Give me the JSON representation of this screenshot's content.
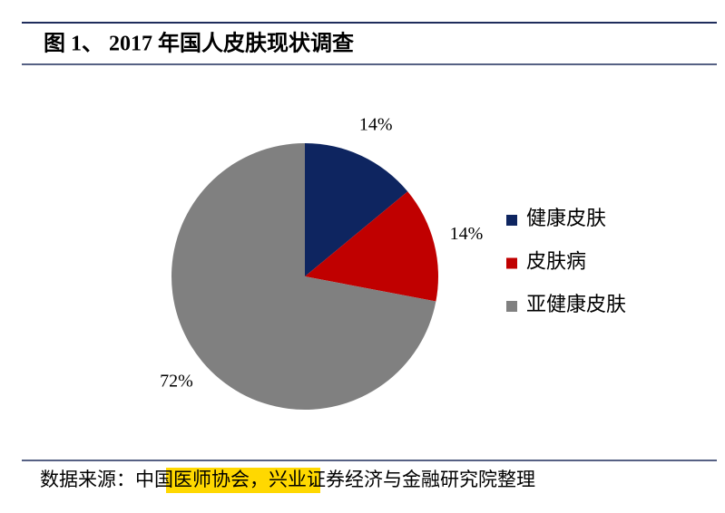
{
  "chart_data": {
    "type": "pie",
    "title": "图 1、 2017 年国人皮肤现状调查",
    "categories": [
      "健康皮肤",
      "皮肤病",
      "亚健康皮肤"
    ],
    "values": [
      14,
      14,
      72
    ],
    "value_labels": [
      "14%",
      "14%",
      "72%"
    ],
    "colors": [
      "#0e2560",
      "#c00000",
      "#808080"
    ],
    "legend": "right"
  },
  "source": {
    "label": "数据来源：",
    "highlight": "中国医师协会",
    "rest": "，兴业证券经济与金融研究院整理"
  }
}
